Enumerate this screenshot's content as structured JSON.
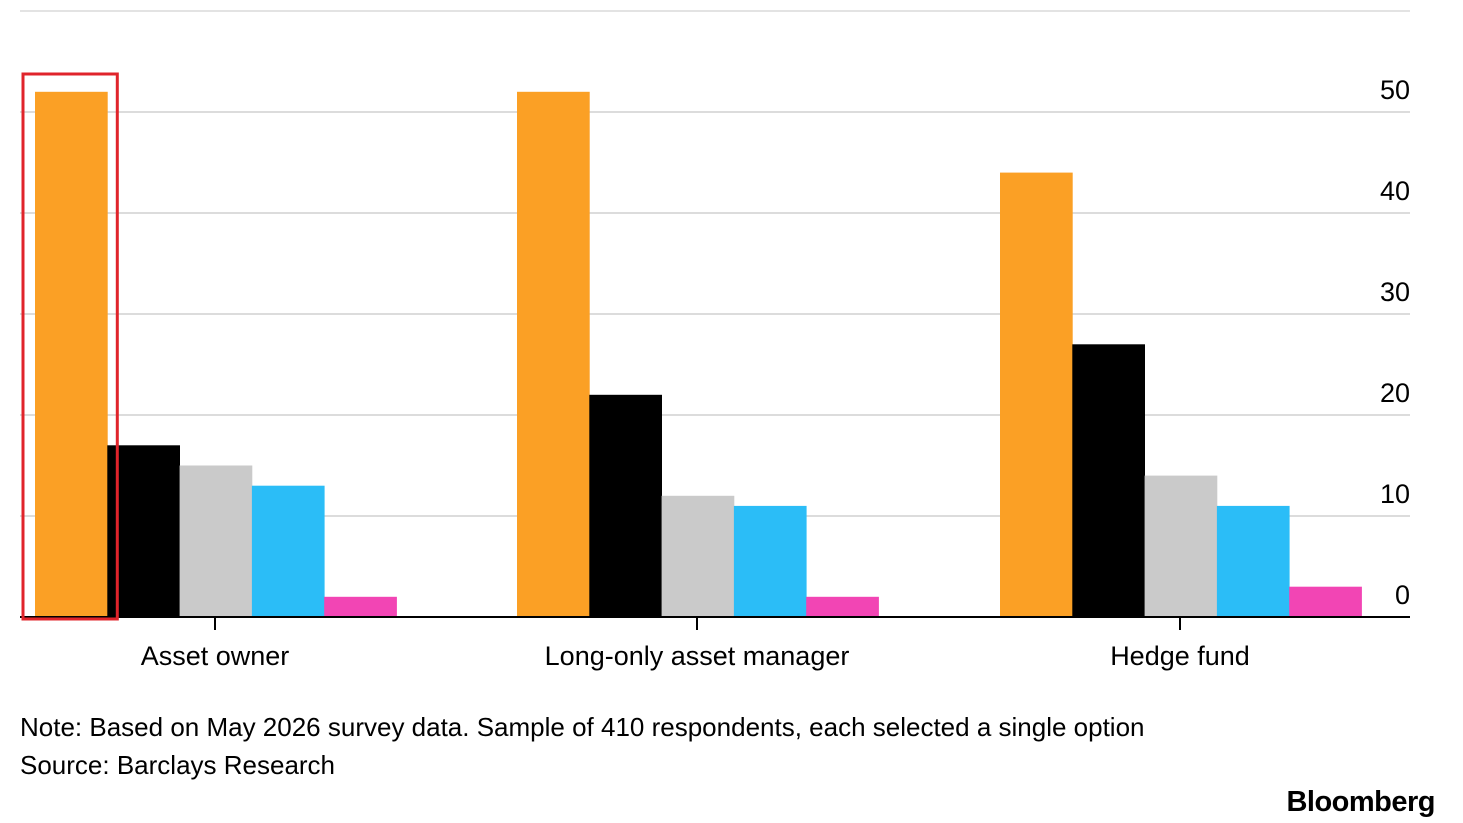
{
  "chart_data": {
    "type": "bar",
    "categories": [
      "Asset owner",
      "Long-only asset manager",
      "Hedge fund"
    ],
    "series": [
      {
        "color": "#FBA025",
        "values": [
          52,
          52,
          44
        ]
      },
      {
        "color": "#000000",
        "values": [
          17,
          22,
          27
        ]
      },
      {
        "color": "#CACACA",
        "values": [
          15,
          12,
          14
        ]
      },
      {
        "color": "#2BBDF7",
        "values": [
          13,
          11,
          11
        ]
      },
      {
        "color": "#F245B4",
        "values": [
          2,
          2,
          3
        ]
      }
    ],
    "y_ticks": [
      "0",
      "10",
      "20",
      "30",
      "40",
      "50"
    ],
    "ylim": [
      0,
      52
    ],
    "y_axis_side": "right",
    "grid": true,
    "highlight": {
      "category_index": 0,
      "series_index": 0,
      "color": "#E0242B"
    }
  },
  "footer": {
    "note": "Note: Based on May 2026 survey data. Sample of 410 respondents, each selected a single option",
    "source": "Source: Barclays Research",
    "brand": "Bloomberg"
  }
}
